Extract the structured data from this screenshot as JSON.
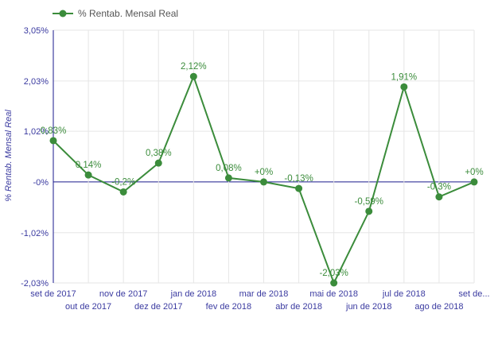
{
  "chart_data": {
    "type": "line",
    "legend": {
      "label": "% Rentab. Mensal Real",
      "position": "top-left"
    },
    "ylabel": "% Rentab. Mensal Real",
    "xlabel": "",
    "ylim": [
      -2.03,
      3.05
    ],
    "y_ticks": [
      "3,05%",
      "2,03%",
      "1,02%",
      "-0%",
      "-1,02%",
      "-2,03%"
    ],
    "y_tick_values": [
      3.05,
      2.03,
      1.02,
      0,
      -1.02,
      -2.03
    ],
    "grid": true,
    "categories": [
      "set de 2017",
      "out de 2017",
      "nov de 2017",
      "dez de 2017",
      "jan de 2018",
      "fev de 2018",
      "mar de 2018",
      "abr de 2018",
      "mai de 2018",
      "jun de 2018",
      "jul de 2018",
      "ago de 2018",
      "set de..."
    ],
    "series": [
      {
        "name": "% Rentab. Mensal Real",
        "color": "#3b8c3b",
        "values": [
          0.83,
          0.14,
          -0.2,
          0.38,
          2.12,
          0.08,
          0,
          -0.13,
          -2.03,
          -0.59,
          1.91,
          -0.3,
          0
        ],
        "labels": [
          "0,83%",
          "0,14%",
          "-0,2%",
          "0,38%",
          "2,12%",
          "0,08%",
          "+0%",
          "-0,13%",
          "-2,03%",
          "-0,59%",
          "1,91%",
          "-0,3%",
          "+0%"
        ]
      }
    ],
    "colors": {
      "line": "#3b8c3b",
      "zero_line": "#1a1a8c",
      "grid": "#e6e6e6",
      "axis_text": "#3a3aa0"
    }
  }
}
